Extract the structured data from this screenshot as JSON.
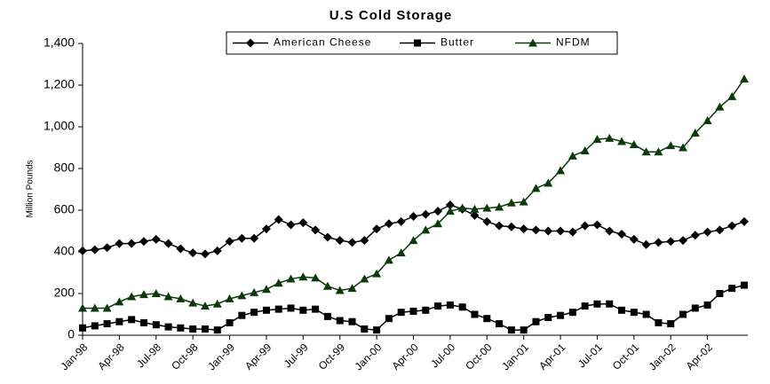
{
  "chart_data": {
    "type": "line",
    "title": "U.S Cold Storage",
    "y_label": "Million Pounds",
    "categories": [
      "Jan-98",
      null,
      null,
      "Apr-98",
      null,
      null,
      "Jul-98",
      null,
      null,
      "Oct-98",
      null,
      null,
      "Jan-99",
      null,
      null,
      "Apr-99",
      null,
      null,
      "Jul-99",
      null,
      null,
      "Oct-99",
      null,
      null,
      "Jan-00",
      null,
      null,
      "Apr-00",
      null,
      null,
      "Jul-00",
      null,
      null,
      "Oct-00",
      null,
      null,
      "Jan-01",
      null,
      null,
      "Apr-01",
      null,
      null,
      "Jul-01",
      null,
      null,
      "Oct-01",
      null,
      null,
      "Jan-02",
      null,
      null,
      "Apr-02",
      null,
      null,
      null
    ],
    "series": [
      {
        "name": "American Cheese",
        "color": "#000000",
        "marker": "diamond",
        "values": [
          405,
          410,
          420,
          440,
          440,
          450,
          460,
          440,
          415,
          395,
          390,
          405,
          450,
          465,
          465,
          510,
          555,
          530,
          540,
          505,
          470,
          455,
          445,
          455,
          510,
          535,
          545,
          570,
          580,
          595,
          625,
          605,
          575,
          545,
          525,
          520,
          510,
          505,
          500,
          500,
          495,
          525,
          530,
          500,
          485,
          460,
          435,
          445,
          450,
          455,
          480,
          495,
          505,
          525,
          545
        ]
      },
      {
        "name": "Butter",
        "color": "#000000",
        "marker": "square",
        "values": [
          35,
          45,
          55,
          65,
          75,
          60,
          50,
          40,
          35,
          30,
          30,
          25,
          60,
          95,
          110,
          120,
          125,
          130,
          120,
          125,
          90,
          70,
          65,
          30,
          25,
          80,
          110,
          115,
          120,
          140,
          145,
          135,
          100,
          80,
          55,
          25,
          25,
          65,
          85,
          95,
          110,
          140,
          150,
          150,
          120,
          110,
          100,
          60,
          55,
          100,
          130,
          145,
          200,
          225,
          240
        ]
      },
      {
        "name": "NFDM",
        "color": "#0a3a0a",
        "marker": "triangle",
        "values": [
          130,
          130,
          130,
          160,
          185,
          195,
          200,
          185,
          175,
          155,
          140,
          150,
          175,
          190,
          205,
          220,
          250,
          270,
          280,
          275,
          235,
          215,
          225,
          270,
          295,
          360,
          395,
          455,
          505,
          535,
          595,
          610,
          605,
          610,
          615,
          635,
          640,
          705,
          730,
          790,
          860,
          885,
          940,
          945,
          930,
          915,
          880,
          880,
          910,
          900,
          970,
          1030,
          1095,
          1145,
          1230
        ]
      }
    ],
    "ylim": [
      0,
      1400
    ],
    "yticks": [
      0,
      200,
      400,
      600,
      800,
      {
        "value": 1000,
        "label": "1,000"
      },
      {
        "value": 1200,
        "label": "1,200"
      },
      {
        "value": 1400,
        "label": "1,400"
      }
    ],
    "grid": false,
    "legend": "top"
  }
}
